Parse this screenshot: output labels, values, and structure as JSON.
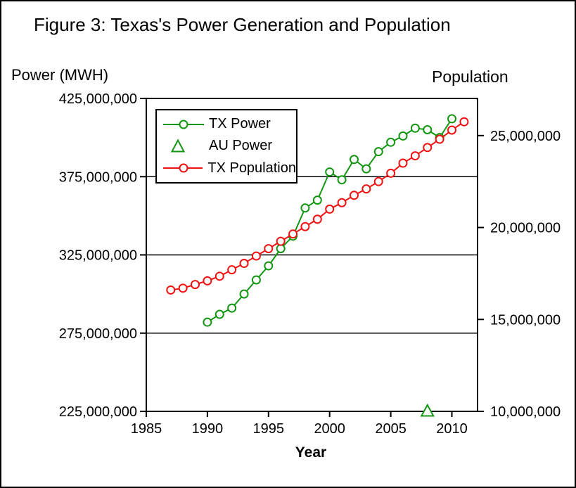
{
  "figure": {
    "title": "Figure 3: Texas's Power Generation and Population"
  },
  "chart_data": {
    "type": "line",
    "title": "Figure 3: Texas's Power Generation and Population",
    "grid": "horizontal-on",
    "legend_position": "top-left-inside",
    "colors": {
      "tx_power": "#129612",
      "au_power": "#129612",
      "tx_population": "#ee1111",
      "axis": "#000000"
    },
    "x_axis": {
      "label": "Year",
      "min": 1985,
      "max": 2012.1,
      "ticks": [
        {
          "v": 1985,
          "label": "1985"
        },
        {
          "v": 1990,
          "label": "1990"
        },
        {
          "v": 1995,
          "label": "1995"
        },
        {
          "v": 2000,
          "label": "2000"
        },
        {
          "v": 2005,
          "label": "2005"
        },
        {
          "v": 2010,
          "label": "2010"
        }
      ]
    },
    "left_axis": {
      "label": "Power (MWH)",
      "min": 225000000,
      "max": 425000000,
      "ticks": [
        {
          "v": 425000000,
          "label": "425,000,000"
        },
        {
          "v": 375000000,
          "label": "375,000,000"
        },
        {
          "v": 325000000,
          "label": "325,000,000"
        },
        {
          "v": 275000000,
          "label": "275,000,000"
        },
        {
          "v": 225000000,
          "label": "225,000,000"
        }
      ],
      "gridline_values": [
        375000000,
        325000000,
        275000000
      ]
    },
    "right_axis": {
      "label": "Population",
      "min": 10000000,
      "max": 27020000,
      "ticks": [
        {
          "v": 25000000,
          "label": "25,000,000"
        },
        {
          "v": 20000000,
          "label": "20,000,000"
        },
        {
          "v": 15000000,
          "label": "15,000,000"
        },
        {
          "v": 10000000,
          "label": "10,000,000"
        }
      ]
    },
    "series": [
      {
        "name": "TX Power",
        "axis": "left",
        "color": "#129612",
        "marker": "circle",
        "line": true,
        "points": [
          [
            1990,
            282000000
          ],
          [
            1991,
            287000000
          ],
          [
            1992,
            291000000
          ],
          [
            1993,
            300000000
          ],
          [
            1994,
            309000000
          ],
          [
            1995,
            318000000
          ],
          [
            1996,
            329000000
          ],
          [
            1997,
            337000000
          ],
          [
            1998,
            355000000
          ],
          [
            1999,
            360000000
          ],
          [
            2000,
            378000000
          ],
          [
            2001,
            373000000
          ],
          [
            2002,
            386000000
          ],
          [
            2003,
            380000000
          ],
          [
            2004,
            391000000
          ],
          [
            2005,
            397000000
          ],
          [
            2006,
            401000000
          ],
          [
            2007,
            406000000
          ],
          [
            2008,
            405000000
          ],
          [
            2009,
            400000000
          ],
          [
            2010,
            412000000
          ]
        ]
      },
      {
        "name": "AU Power",
        "axis": "left",
        "color": "#129612",
        "marker": "triangle",
        "line": false,
        "points": [
          [
            2008,
            225000000
          ]
        ]
      },
      {
        "name": "TX Population",
        "axis": "right",
        "color": "#ee1111",
        "marker": "circle",
        "line": true,
        "points": [
          [
            1987,
            16600000
          ],
          [
            1988,
            16700000
          ],
          [
            1989,
            16900000
          ],
          [
            1990,
            17100000
          ],
          [
            1991,
            17350000
          ],
          [
            1992,
            17700000
          ],
          [
            1993,
            18050000
          ],
          [
            1994,
            18450000
          ],
          [
            1995,
            18850000
          ],
          [
            1996,
            19250000
          ],
          [
            1997,
            19650000
          ],
          [
            1998,
            20050000
          ],
          [
            1999,
            20450000
          ],
          [
            2000,
            21000000
          ],
          [
            2001,
            21350000
          ],
          [
            2002,
            21750000
          ],
          [
            2003,
            22100000
          ],
          [
            2004,
            22500000
          ],
          [
            2005,
            22950000
          ],
          [
            2006,
            23500000
          ],
          [
            2007,
            23900000
          ],
          [
            2008,
            24350000
          ],
          [
            2009,
            24800000
          ],
          [
            2010,
            25300000
          ],
          [
            2011,
            25750000
          ]
        ]
      }
    ]
  }
}
